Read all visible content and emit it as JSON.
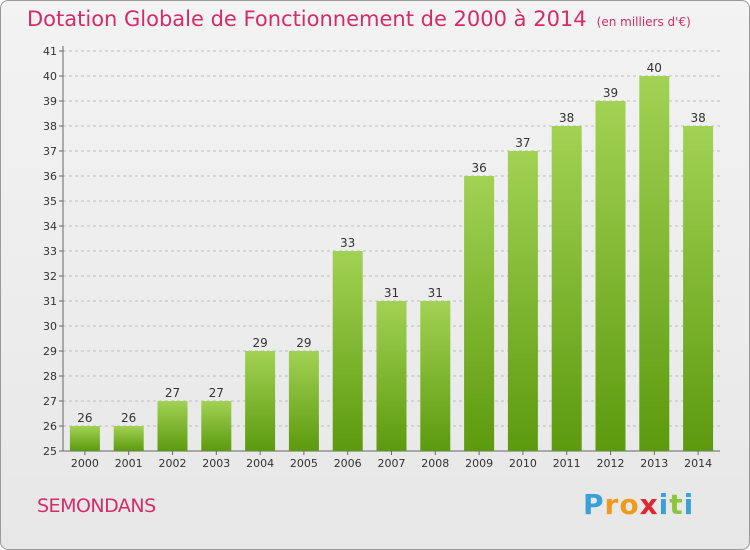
{
  "title": "Dotation Globale de Fonctionnement de 2000 à 2014",
  "unit_label": "(en milliers d'€)",
  "commune": "SEMONDANS",
  "logo": {
    "text": "Proxiti",
    "letters": [
      "P",
      "r",
      "o",
      "x",
      "i",
      "t",
      "i"
    ],
    "colors": [
      "#3aa0d8",
      "#f09a1a",
      "#f09a1a",
      "#e0262e",
      "#3aa0d8",
      "#8cc63f",
      "#3aa0d8"
    ]
  },
  "colors": {
    "bar_top": "#a2d254",
    "bar_bottom": "#5c9a0e",
    "title": "#d42b69",
    "grid": "#bdbdbd"
  },
  "chart_data": {
    "type": "bar",
    "title": "Dotation Globale de Fonctionnement de 2000 à 2014",
    "subtitle": "(en milliers d'€)",
    "categories": [
      "2000",
      "2001",
      "2002",
      "2003",
      "2004",
      "2005",
      "2006",
      "2007",
      "2008",
      "2009",
      "2010",
      "2011",
      "2012",
      "2013",
      "2014"
    ],
    "values": [
      26,
      26,
      27,
      27,
      29,
      29,
      33,
      31,
      31,
      36,
      37,
      38,
      39,
      40,
      38
    ],
    "yticks": [
      25,
      26,
      27,
      28,
      29,
      30,
      31,
      32,
      33,
      34,
      35,
      36,
      37,
      38,
      39,
      40,
      41
    ],
    "ylim": [
      25,
      41
    ],
    "grid": true,
    "xlabel": "",
    "ylabel": ""
  }
}
